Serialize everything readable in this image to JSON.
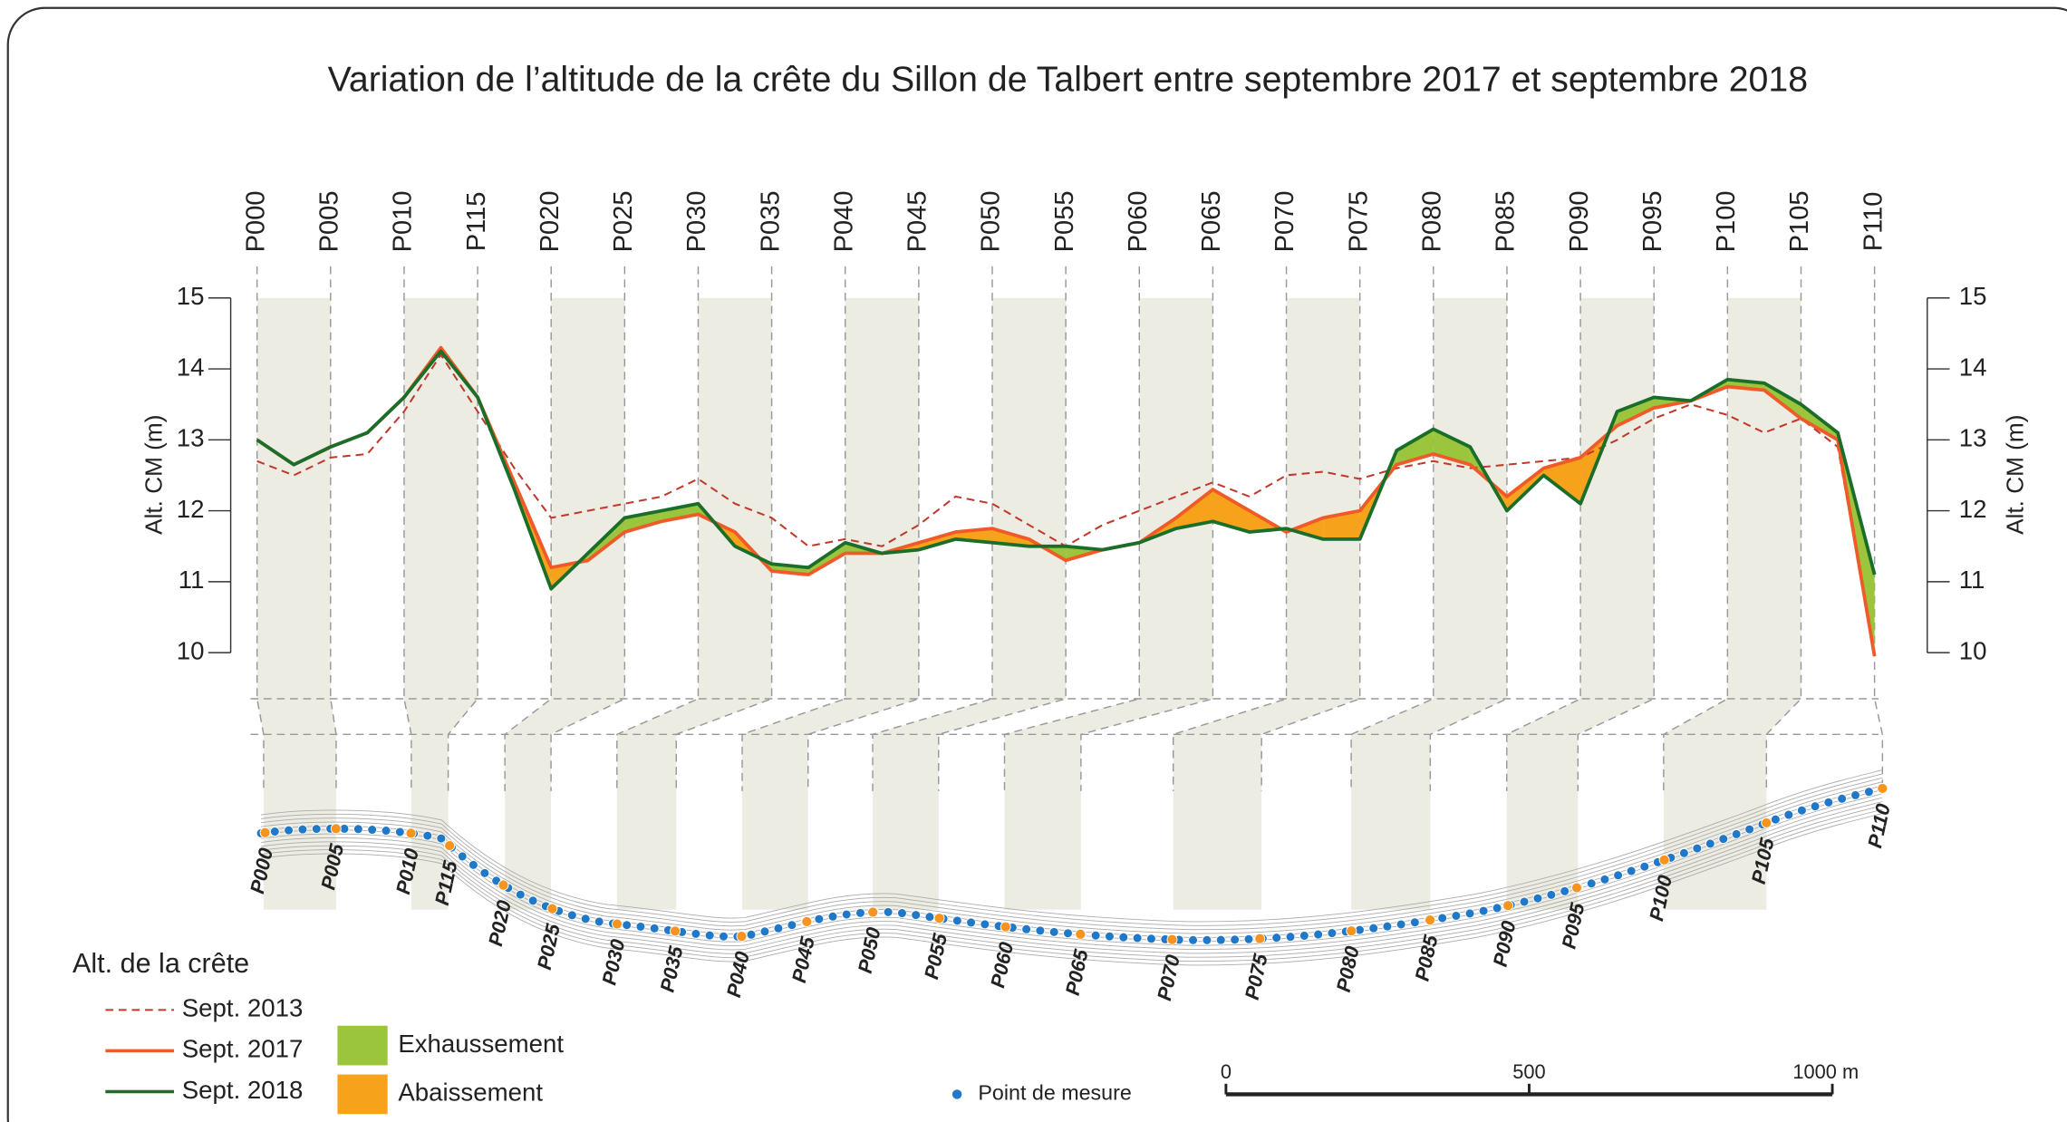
{
  "chart_data": {
    "type": "line",
    "title": "Variation de l’altitude de la crête du Sillon de Talbert entre septembre 2017 et septembre 2018",
    "ylabel": "Alt. CM (m)",
    "y2label": "Alt. CM (m)",
    "categories": [
      "P000",
      null,
      "P005",
      null,
      "P010",
      null,
      "P115",
      null,
      "P020",
      null,
      "P025",
      null,
      "P030",
      null,
      "P035",
      null,
      "P040",
      null,
      "P045",
      null,
      "P050",
      null,
      "P055",
      null,
      "P060",
      null,
      "P065",
      null,
      "P070",
      null,
      "P075",
      null,
      "P080",
      null,
      "P085",
      null,
      "P090",
      null,
      "P095",
      null,
      "P100",
      null,
      "P105",
      null,
      "P110"
    ],
    "series": [
      {
        "name": "Sept. 2013",
        "color": "#c0392b",
        "dashed": true,
        "values": [
          12.7,
          12.5,
          12.75,
          12.8,
          13.4,
          14.2,
          13.4,
          12.6,
          11.9,
          12.0,
          12.1,
          12.2,
          12.45,
          12.1,
          11.9,
          11.5,
          11.6,
          11.5,
          11.8,
          12.2,
          12.1,
          11.8,
          11.5,
          11.8,
          12.0,
          12.2,
          12.4,
          12.2,
          12.5,
          12.55,
          12.45,
          12.6,
          12.7,
          12.6,
          12.65,
          12.7,
          12.75,
          13.0,
          13.3,
          13.5,
          13.35,
          13.1,
          13.3,
          12.9,
          10.0
        ]
      },
      {
        "name": "Sept. 2017",
        "color": "#f05a28",
        "dashed": false,
        "values": [
          13.0,
          12.65,
          12.9,
          13.1,
          13.6,
          14.3,
          13.6,
          12.4,
          11.2,
          11.3,
          11.7,
          11.85,
          11.95,
          11.7,
          11.15,
          11.1,
          11.4,
          11.4,
          11.55,
          11.7,
          11.75,
          11.6,
          11.3,
          11.45,
          11.55,
          11.9,
          12.3,
          12.0,
          11.7,
          11.9,
          12.0,
          12.65,
          12.8,
          12.65,
          12.2,
          12.6,
          12.75,
          13.2,
          13.45,
          13.55,
          13.75,
          13.7,
          13.3,
          13.0,
          9.95
        ]
      },
      {
        "name": "Sept. 2018",
        "color": "#1b6e2a",
        "dashed": false,
        "values": [
          13.0,
          12.65,
          12.9,
          13.1,
          13.6,
          14.25,
          13.6,
          12.3,
          10.9,
          11.4,
          11.9,
          12.0,
          12.1,
          11.5,
          11.25,
          11.2,
          11.55,
          11.4,
          11.45,
          11.6,
          11.55,
          11.5,
          11.5,
          11.45,
          11.55,
          11.75,
          11.85,
          11.7,
          11.75,
          11.6,
          11.6,
          12.85,
          13.15,
          12.9,
          12.0,
          12.5,
          12.1,
          13.4,
          13.6,
          13.55,
          13.85,
          13.8,
          13.5,
          13.1,
          11.1
        ]
      }
    ],
    "fills": [
      {
        "name": "Exhaussement",
        "color": "#9bc53d"
      },
      {
        "name": "Abaissement",
        "color": "#f7a21b"
      }
    ],
    "ylim": [
      10,
      15
    ],
    "yticks": [
      10,
      11,
      12,
      13,
      14,
      15
    ],
    "y2lim": [
      10,
      15
    ],
    "y2ticks": [
      10,
      11,
      12,
      13,
      14,
      15
    ],
    "legend_title": "Alt. de la crête",
    "map_legend": "Point de mesure",
    "scale_labels": [
      "0",
      "500",
      "1000 m"
    ]
  }
}
